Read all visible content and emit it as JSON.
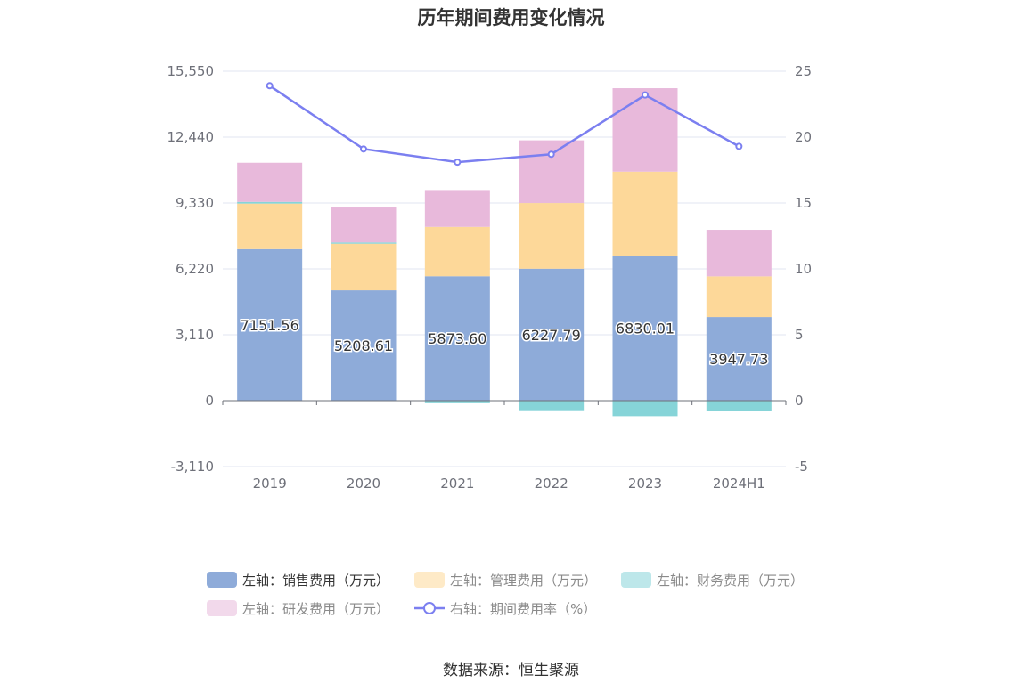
{
  "title": "历年期间费用变化情况",
  "source": "数据来源：恒生聚源",
  "chart_data": {
    "type": "bar",
    "stacked": true,
    "categories": [
      "2019",
      "2020",
      "2021",
      "2022",
      "2023",
      "2024H1"
    ],
    "left_axis": {
      "ticks": [
        "15,550",
        "12,440",
        "9,330",
        "6,220",
        "3,110",
        "0",
        "-3,110"
      ],
      "ylim": [
        -3110,
        15550
      ]
    },
    "right_axis": {
      "ticks": [
        "25",
        "20",
        "15",
        "10",
        "5",
        "0",
        "-5"
      ],
      "ylim": [
        -5,
        25
      ]
    },
    "series": [
      {
        "name": "左轴：销售费用（万元）",
        "color": "#8eabd9",
        "axis": "left",
        "values": [
          7151.56,
          5208.61,
          5873.6,
          6227.79,
          6830.01,
          3947.73
        ],
        "labels": [
          "7151.56",
          "5208.61",
          "5873.60",
          "6227.79",
          "6830.01",
          "3947.73"
        ]
      },
      {
        "name": "左轴：管理费用（万元）",
        "color": "#fdd899",
        "axis": "left",
        "values": [
          2150,
          2200,
          2330,
          3100,
          3980,
          1920
        ]
      },
      {
        "name": "左轴：财务费用（万元）",
        "color": "#86d4d8",
        "axis": "left",
        "values": [
          80,
          60,
          -120,
          -450,
          -730,
          -480
        ]
      },
      {
        "name": "左轴：研发费用（万元）",
        "color": "#e8b9db",
        "axis": "left",
        "values": [
          1850,
          1650,
          1740,
          2960,
          3940,
          2200
        ]
      },
      {
        "name": "右轴：期间费用率（%）",
        "color": "#7b7ff0",
        "axis": "right",
        "type": "line",
        "values": [
          23.9,
          19.1,
          18.1,
          18.7,
          23.2,
          19.3
        ]
      }
    ],
    "legend_position": "bottom",
    "grid": true
  }
}
